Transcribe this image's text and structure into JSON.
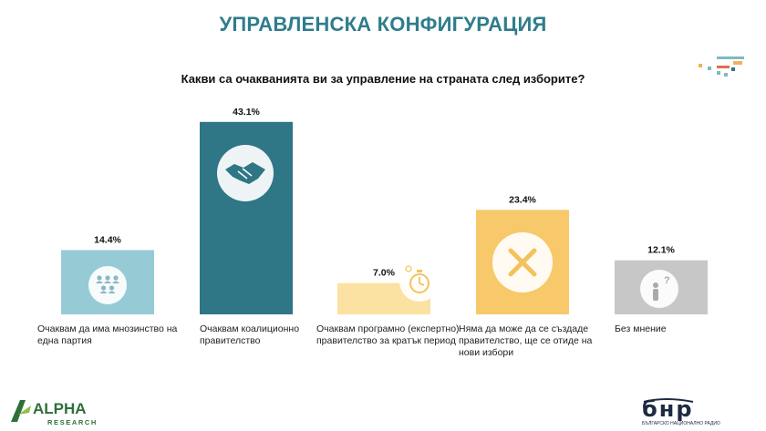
{
  "slide": {
    "title": "УПРАВЛЕНСКА КОНФИГУРАЦИЯ",
    "question": "Какви са очакванията ви за управление на страната след изборите?"
  },
  "colors": {
    "title": "#2f7d8c",
    "bars": [
      "#96cbd6",
      "#2f7686",
      "#fbe1a2",
      "#f7c96a",
      "#c7c7c7"
    ],
    "icons": [
      "#8ab6c5",
      "#2f7686",
      "#f4c25c",
      "#f4c25c",
      "#aaaaaa"
    ]
  },
  "chart_data": {
    "type": "bar",
    "categories": [
      "Очаквам да има мнозинство на една партия",
      "Очаквам коалиционно правителство",
      "Очаквам програмно (експертно) правителство за кратък период",
      "Няма да може да се създаде правителство, ще се отиде на нови избори",
      "Без мнение"
    ],
    "values": [
      14.4,
      43.1,
      7.0,
      23.4,
      12.1
    ],
    "value_labels": [
      "14.4%",
      "43.1%",
      "7.0%",
      "23.4%",
      "12.1%"
    ],
    "icons": [
      "people-group-icon",
      "handshake-icon",
      "stopwatch-icon",
      "cross-icon",
      "question-person-icon"
    ],
    "title": "Какви са очакванията ви за управление на страната след изборите?",
    "xlabel": "",
    "ylabel": "",
    "grid": false,
    "legend": "none"
  },
  "labels": {
    "l0": [
      "Очаквам да има мнозинство на",
      "една партия"
    ],
    "l1": [
      "Очаквам коалиционно",
      "правителство"
    ],
    "l2": [
      "Очаквам програмно (експертно)",
      "правителство за кратък период"
    ],
    "l3": [
      "Няма да може да се създаде",
      "правителство, ще се отиде на",
      "нови избори"
    ],
    "l4": [
      "Без мнение"
    ]
  },
  "logos": {
    "alpha_main": "ALPHA",
    "alpha_sub": "RESEARCH",
    "bnr_main": "бнр",
    "bnr_sub": "БЪЛГАРСКО НАЦИОНАЛНО РАДИО"
  }
}
